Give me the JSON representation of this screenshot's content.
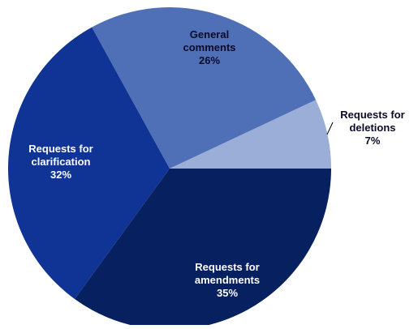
{
  "chart_data": {
    "type": "pie",
    "title": "",
    "slices": [
      {
        "name_lines": [
          "Requests for",
          "deletions"
        ],
        "value": 7,
        "label": "7%",
        "color": "#9aaed7",
        "label_color": "#0a0a2a"
      },
      {
        "name_lines": [
          "General",
          "comments"
        ],
        "value": 26,
        "label": "26%",
        "color": "#4f70b7",
        "label_color": "#0a0a2a"
      },
      {
        "name_lines": [
          "Requests for",
          "clarification"
        ],
        "value": 32,
        "label": "32%",
        "color": "#0f3496",
        "label_color": "#ffffff"
      },
      {
        "name_lines": [
          "Requests for",
          "amendments"
        ],
        "value": 35,
        "label": "35%",
        "color": "#062060",
        "label_color": "#ffffff"
      }
    ]
  }
}
